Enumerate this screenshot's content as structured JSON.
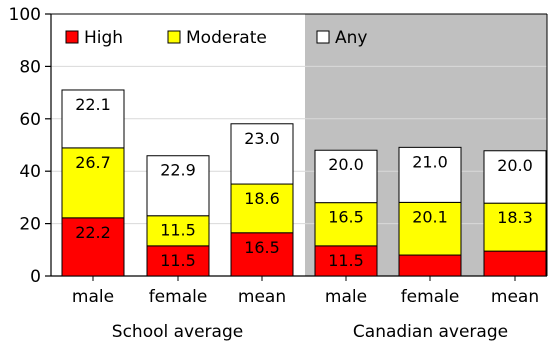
{
  "chart_data": {
    "type": "bar",
    "stacked": true,
    "categories": [
      "male",
      "female",
      "mean",
      "male",
      "female",
      "mean"
    ],
    "groups": [
      {
        "label": "School average",
        "start": 0,
        "end": 2,
        "shaded": false
      },
      {
        "label": "Canadian average",
        "start": 3,
        "end": 5,
        "shaded": true
      }
    ],
    "series": [
      {
        "name": "High",
        "color": "#ff0000",
        "values": [
          22.2,
          11.5,
          16.5,
          11.5,
          8.0,
          9.5
        ],
        "labels": [
          "22.2",
          "11.5",
          "16.5",
          "11.5",
          "",
          ""
        ]
      },
      {
        "name": "Moderate",
        "color": "#ffff00",
        "values": [
          26.7,
          11.5,
          18.6,
          16.5,
          20.1,
          18.3
        ],
        "labels": [
          "26.7",
          "11.5",
          "18.6",
          "16.5",
          "20.1",
          "18.3"
        ]
      },
      {
        "name": "Any",
        "color": "#ffffff",
        "values": [
          22.1,
          22.9,
          23.0,
          20.0,
          21.0,
          20.0
        ],
        "labels": [
          "22.1",
          "22.9",
          "23.0",
          "20.0",
          "21.0",
          "20.0"
        ]
      }
    ],
    "ylim": [
      0,
      100
    ],
    "yticks": [
      "0",
      "20",
      "40",
      "60",
      "80",
      "100"
    ],
    "grid": true,
    "legend_position": "top-left",
    "shade_color": "#c0c0c0",
    "grid_color": "#d9d9d9"
  }
}
